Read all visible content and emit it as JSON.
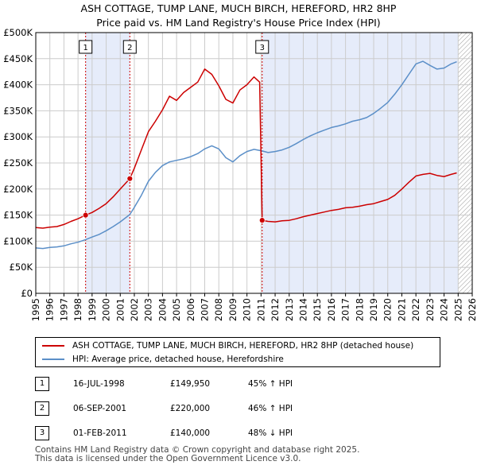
{
  "title_line1": "ASH COTTAGE, TUMP LANE, MUCH BIRCH, HEREFORD, HR2 8HP",
  "title_line2": "Price paid vs. HM Land Registry's House Price Index (HPI)",
  "colors": {
    "price_line": "#cc0000",
    "hpi_line": "#5b8fc8",
    "shade": "#e6ecfa",
    "grid": "#cccccc",
    "marker_border": "#cc0000"
  },
  "chart_data": {
    "type": "line",
    "xlim": [
      1995,
      2026
    ],
    "ylim": [
      0,
      500000
    ],
    "x_ticks": [
      "1995",
      "1996",
      "1997",
      "1998",
      "1999",
      "2000",
      "2001",
      "2002",
      "2003",
      "2004",
      "2005",
      "2006",
      "2007",
      "2008",
      "2009",
      "2010",
      "2011",
      "2012",
      "2013",
      "2014",
      "2015",
      "2016",
      "2017",
      "2018",
      "2019",
      "2020",
      "2021",
      "2022",
      "2023",
      "2024",
      "2025",
      "2026"
    ],
    "y_ticks": [
      "£0",
      "£50K",
      "£100K",
      "£150K",
      "£200K",
      "£250K",
      "£300K",
      "£350K",
      "£400K",
      "£450K",
      "£500K"
    ],
    "grid": true,
    "shaded_periods": [
      [
        1998.54,
        2001.68
      ],
      [
        2011.08,
        2025.0
      ]
    ],
    "hatched_future_from": 2025.0,
    "series": [
      {
        "name": "ASH COTTAGE, TUMP LANE, MUCH BIRCH, HEREFORD, HR2 8HP (detached house)",
        "x": [
          1995.0,
          1995.5,
          1996.0,
          1996.5,
          1997.0,
          1997.5,
          1998.0,
          1998.54,
          1999.0,
          1999.5,
          2000.0,
          2000.5,
          2001.0,
          2001.68,
          2002.0,
          2002.5,
          2003.0,
          2003.5,
          2004.0,
          2004.5,
          2005.0,
          2005.5,
          2006.0,
          2006.5,
          2007.0,
          2007.5,
          2008.0,
          2008.5,
          2009.0,
          2009.5,
          2010.0,
          2010.5,
          2010.9,
          2011.08,
          2011.5,
          2012.0,
          2012.5,
          2013.0,
          2013.5,
          2014.0,
          2014.5,
          2015.0,
          2015.5,
          2016.0,
          2016.5,
          2017.0,
          2017.5,
          2018.0,
          2018.5,
          2019.0,
          2019.5,
          2020.0,
          2020.5,
          2021.0,
          2021.5,
          2022.0,
          2022.5,
          2023.0,
          2023.5,
          2024.0,
          2024.5,
          2024.9
        ],
        "values": [
          126000,
          125000,
          127000,
          128000,
          132000,
          138000,
          143000,
          149950,
          155000,
          163000,
          172000,
          185000,
          200000,
          220000,
          240000,
          275000,
          310000,
          330000,
          352000,
          378000,
          370000,
          385000,
          395000,
          405000,
          430000,
          420000,
          398000,
          372000,
          365000,
          390000,
          400000,
          415000,
          405000,
          140000,
          138000,
          137000,
          139000,
          140000,
          143000,
          147000,
          150000,
          153000,
          156000,
          159000,
          161000,
          164000,
          165000,
          167000,
          170000,
          172000,
          176000,
          180000,
          188000,
          200000,
          213000,
          225000,
          228000,
          230000,
          226000,
          224000,
          228000,
          231000
        ]
      },
      {
        "name": "HPI: Average price, detached house, Herefordshire",
        "x": [
          1995.0,
          1995.5,
          1996.0,
          1996.5,
          1997.0,
          1997.5,
          1998.0,
          1998.54,
          1999.0,
          1999.5,
          2000.0,
          2000.5,
          2001.0,
          2001.68,
          2002.0,
          2002.5,
          2003.0,
          2003.5,
          2004.0,
          2004.5,
          2005.0,
          2005.5,
          2006.0,
          2006.5,
          2007.0,
          2007.5,
          2008.0,
          2008.5,
          2009.0,
          2009.5,
          2010.0,
          2010.5,
          2011.08,
          2011.5,
          2012.0,
          2012.5,
          2013.0,
          2013.5,
          2014.0,
          2014.5,
          2015.0,
          2015.5,
          2016.0,
          2016.5,
          2017.0,
          2017.5,
          2018.0,
          2018.5,
          2019.0,
          2019.5,
          2020.0,
          2020.5,
          2021.0,
          2021.5,
          2022.0,
          2022.5,
          2023.0,
          2023.5,
          2024.0,
          2024.5,
          2024.9
        ],
        "values": [
          87000,
          86000,
          88000,
          89000,
          91000,
          95000,
          98000,
          103000,
          108000,
          113000,
          120000,
          128000,
          137000,
          151000,
          165000,
          188000,
          215000,
          232000,
          245000,
          252000,
          255000,
          258000,
          262000,
          268000,
          277000,
          283000,
          277000,
          260000,
          252000,
          264000,
          272000,
          276000,
          273000,
          270000,
          272000,
          275000,
          280000,
          287000,
          295000,
          302000,
          308000,
          313000,
          318000,
          321000,
          325000,
          330000,
          333000,
          337000,
          345000,
          355000,
          366000,
          382000,
          400000,
          420000,
          440000,
          445000,
          437000,
          430000,
          432000,
          440000,
          444000
        ]
      }
    ],
    "sales": [
      {
        "label": "1",
        "x": 1998.54,
        "value": 149950
      },
      {
        "label": "2",
        "x": 2001.68,
        "value": 220000
      },
      {
        "label": "3",
        "x": 2011.08,
        "value": 140000
      }
    ]
  },
  "legend": {
    "price_label": "ASH COTTAGE, TUMP LANE, MUCH BIRCH, HEREFORD, HR2 8HP (detached house)",
    "hpi_label": "HPI: Average price, detached house, Herefordshire"
  },
  "sales_table": [
    {
      "num": "1",
      "date": "16-JUL-1998",
      "price": "£149,950",
      "hpi": "45% ↑ HPI"
    },
    {
      "num": "2",
      "date": "06-SEP-2001",
      "price": "£220,000",
      "hpi": "46% ↑ HPI"
    },
    {
      "num": "3",
      "date": "01-FEB-2011",
      "price": "£140,000",
      "hpi": "48% ↓ HPI"
    }
  ],
  "footer_line1": "Contains HM Land Registry data © Crown copyright and database right 2025.",
  "footer_line2": "This data is licensed under the Open Government Licence v3.0."
}
